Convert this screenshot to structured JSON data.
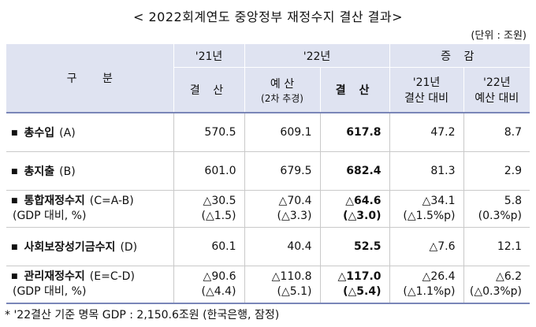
{
  "title": "< 2022회계연도 중앙정부 재정수지 결산 결과>",
  "unit": "(단위 : 조원)",
  "header": {
    "gubun": "구 분",
    "y21": "'21년",
    "y22": "'22년",
    "change": "증 감",
    "settle21": "결 산",
    "budget22": "예 산",
    "budget22_sub": "(2차 추경)",
    "settle22": "결 산",
    "vs21_l1": "'21년",
    "vs21_l2": "결산 대비",
    "vs22_l1": "'22년",
    "vs22_l2": "예산 대비"
  },
  "rows": [
    {
      "name": "총수입",
      "suffix": "(A)",
      "note": "",
      "c1": "570.5",
      "c2": "609.1",
      "c3": "617.8",
      "c4": "47.2",
      "c5": "8.7",
      "n1": "",
      "n2": "",
      "n3": "",
      "n4": "",
      "n5": ""
    },
    {
      "name": "총지출",
      "suffix": "(B)",
      "note": "",
      "c1": "601.0",
      "c2": "679.5",
      "c3": "682.4",
      "c4": "81.3",
      "c5": "2.9",
      "n1": "",
      "n2": "",
      "n3": "",
      "n4": "",
      "n5": ""
    },
    {
      "name": "통합재정수지",
      "suffix": "(C=A-B)",
      "note": "(GDP 대비, %)",
      "c1": "△30.5",
      "c2": "△70.4",
      "c3": "△64.6",
      "c4": "△34.1",
      "c5": "5.8",
      "n1": "(△1.5)",
      "n2": "(△3.3)",
      "n3": "(△3.0)",
      "n4": "(△1.5%p)",
      "n5": "(0.3%p)"
    },
    {
      "name": "사회보장성기금수지",
      "suffix": "(D)",
      "note": "",
      "c1": "60.1",
      "c2": "40.4",
      "c3": "52.5",
      "c4": "△7.6",
      "c5": "12.1",
      "n1": "",
      "n2": "",
      "n3": "",
      "n4": "",
      "n5": ""
    },
    {
      "name": "관리재정수지",
      "suffix": "(E=C-D)",
      "note": "(GDP 대비, %)",
      "c1": "△90.6",
      "c2": "△110.8",
      "c3": "△117.0",
      "c4": "△26.4",
      "c5": "△6.2",
      "n1": "(△4.4)",
      "n2": "(△5.1)",
      "n3": "(△5.4)",
      "n4": "(△1.1%p)",
      "n5": "(△0.3%p)"
    }
  ],
  "bullet": "■",
  "footnote": "* '22결산 기준 명목 GDP : 2,150.6조원 (한국은행, 잠정)"
}
